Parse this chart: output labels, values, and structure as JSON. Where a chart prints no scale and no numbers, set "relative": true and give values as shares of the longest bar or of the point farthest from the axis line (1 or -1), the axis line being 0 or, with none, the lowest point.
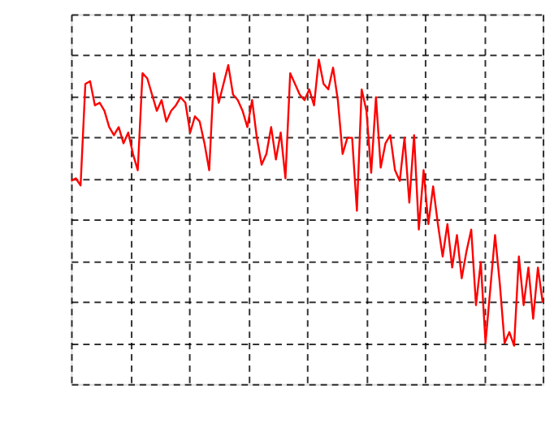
{
  "chart_data": {
    "type": "line",
    "relative": true,
    "grid": true,
    "line_style": "solid",
    "marker": "none",
    "categories": [
      null,
      null,
      null,
      null,
      null,
      null,
      null,
      null,
      null,
      null,
      null,
      null,
      null,
      null,
      null,
      null,
      null,
      null,
      null,
      null,
      null,
      null,
      null,
      null,
      null,
      null,
      null,
      null,
      null,
      null,
      null,
      null,
      null,
      null,
      null,
      null,
      null,
      null,
      null,
      null,
      null,
      null,
      null,
      null,
      null,
      null,
      null,
      null,
      null,
      null,
      null,
      null,
      null,
      null,
      null,
      null,
      null,
      null,
      null,
      null,
      null,
      null,
      null,
      null,
      null,
      null,
      null,
      null,
      null,
      null,
      null,
      null,
      null,
      null,
      null,
      null,
      null,
      null,
      null,
      null,
      null,
      null,
      null,
      null,
      null,
      null,
      null,
      null,
      null,
      null,
      null,
      null,
      null,
      null,
      null,
      null,
      null,
      null,
      null,
      null
    ],
    "series": [
      {
        "color": "#ff0000",
        "values": [
          0.626,
          0.634,
          0.612,
          0.925,
          0.933,
          0.859,
          0.867,
          0.842,
          0.792,
          0.767,
          0.792,
          0.742,
          0.775,
          0.709,
          0.659,
          0.958,
          0.942,
          0.892,
          0.842,
          0.875,
          0.809,
          0.842,
          0.859,
          0.884,
          0.867,
          0.775,
          0.825,
          0.809,
          0.742,
          0.659,
          0.958,
          0.867,
          0.925,
          0.983,
          0.892,
          0.875,
          0.842,
          0.792,
          0.875,
          0.759,
          0.676,
          0.709,
          0.792,
          0.692,
          0.775,
          0.634,
          0.958,
          0.925,
          0.892,
          0.875,
          0.908,
          0.859,
          1,
          0.925,
          0.908,
          0.975,
          0.875,
          0.709,
          0.759,
          0.759,
          0.534,
          0.908,
          0.842,
          0.651,
          0.884,
          0.667,
          0.742,
          0.767,
          0.659,
          0.626,
          0.759,
          0.559,
          0.767,
          0.476,
          0.659,
          0.493,
          0.609,
          0.493,
          0.393,
          0.493,
          0.359,
          0.459,
          0.326,
          0.409,
          0.476,
          0.243,
          0.376,
          0.126,
          0.293,
          0.459,
          0.309,
          0.126,
          0.16,
          0.118,
          0.393,
          0.243,
          0.359,
          0.201,
          0.359,
          0.251
        ]
      }
    ]
  }
}
